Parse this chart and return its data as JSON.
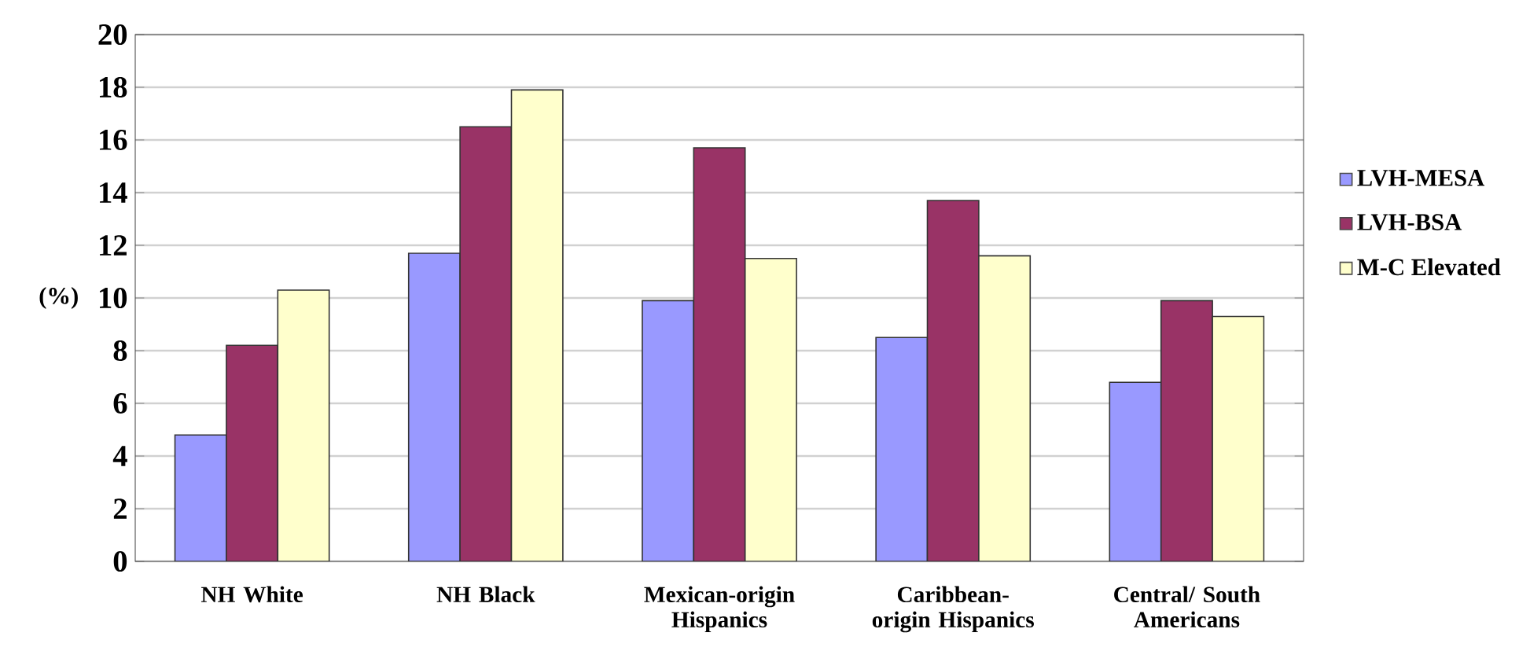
{
  "chart_data": {
    "type": "bar",
    "ylabel": "(%)",
    "categories": [
      "NH White",
      "NH Black",
      "Mexican-origin Hispanics",
      "Caribbean-origin Hispanics",
      "Central/ South Americans"
    ],
    "series": [
      {
        "name": "LVH-MESA",
        "color": "#9999ff",
        "values": [
          4.8,
          11.7,
          9.9,
          8.5,
          6.8
        ]
      },
      {
        "name": "LVH-BSA",
        "color": "#993366",
        "values": [
          8.2,
          16.5,
          15.7,
          13.7,
          9.9
        ]
      },
      {
        "name": "M-C Elevated",
        "color": "#ffffcc",
        "values": [
          10.3,
          17.9,
          11.5,
          11.6,
          9.3
        ]
      }
    ],
    "ylim": [
      0,
      20
    ],
    "yticks": [
      0,
      2,
      4,
      6,
      8,
      10,
      12,
      14,
      16,
      18,
      20
    ],
    "grid": "y",
    "legend": "right"
  }
}
